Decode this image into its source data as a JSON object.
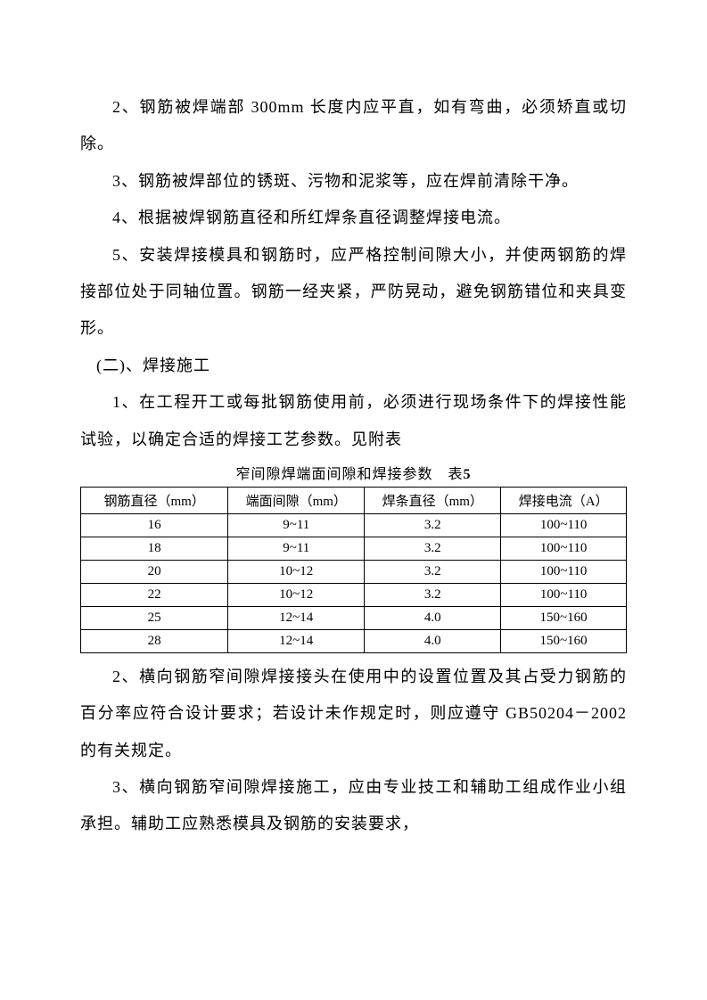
{
  "paragraphs": {
    "p1": "2、钢筋被焊端部 300mm 长度内应平直，如有弯曲，必须矫直或切除。",
    "p2": "3、钢筋被焊部位的锈斑、污物和泥浆等，应在焊前清除干净。",
    "p3": "4、根据被焊钢筋直径和所红焊条直径调整焊接电流。",
    "p4": "5、安装焊接模具和钢筋时，应严格控制间隙大小，并使两钢筋的焊接部位处于同轴位置。钢筋一经夹紧，严防晃动，避免钢筋错位和夹具变形。",
    "heading": "(二)、焊接施工",
    "p5": "1、在工程开工或每批钢筋使用前，必须进行现场条件下的焊接性能试验，以确定合适的焊接工艺参数。见附表",
    "p6": "2、横向钢筋窄间隙焊接接头在使用中的设置位置及其占受力钢筋的百分率应符合设计要求；若设计未作规定时，则应遵守 GB50204－2002 的有关规定。",
    "p7": "3、横向钢筋窄间隙焊接施工，应由专业技工和辅助工组成作业小组承担。辅助工应熟悉模具及钢筋的安装要求，"
  },
  "table": {
    "caption_text": "窄间隙焊端面间隙和焊接参数　表",
    "caption_num": "5",
    "headers": [
      "钢筋直径（mm）",
      "端面间隙（mm）",
      "焊条直径（mm）",
      "焊接电流（A）"
    ],
    "rows": [
      [
        "16",
        "9~11",
        "3.2",
        "100~110"
      ],
      [
        "18",
        "9~11",
        "3.2",
        "100~110"
      ],
      [
        "20",
        "10~12",
        "3.2",
        "100~110"
      ],
      [
        "22",
        "10~12",
        "3.2",
        "100~110"
      ],
      [
        "25",
        "12~14",
        "4.0",
        "150~160"
      ],
      [
        "28",
        "12~14",
        "4.0",
        "150~160"
      ]
    ],
    "col_widths": [
      "27%",
      "25%",
      "25%",
      "23%"
    ]
  },
  "colors": {
    "background": "#ffffff",
    "text": "#000000",
    "border": "#000000"
  }
}
